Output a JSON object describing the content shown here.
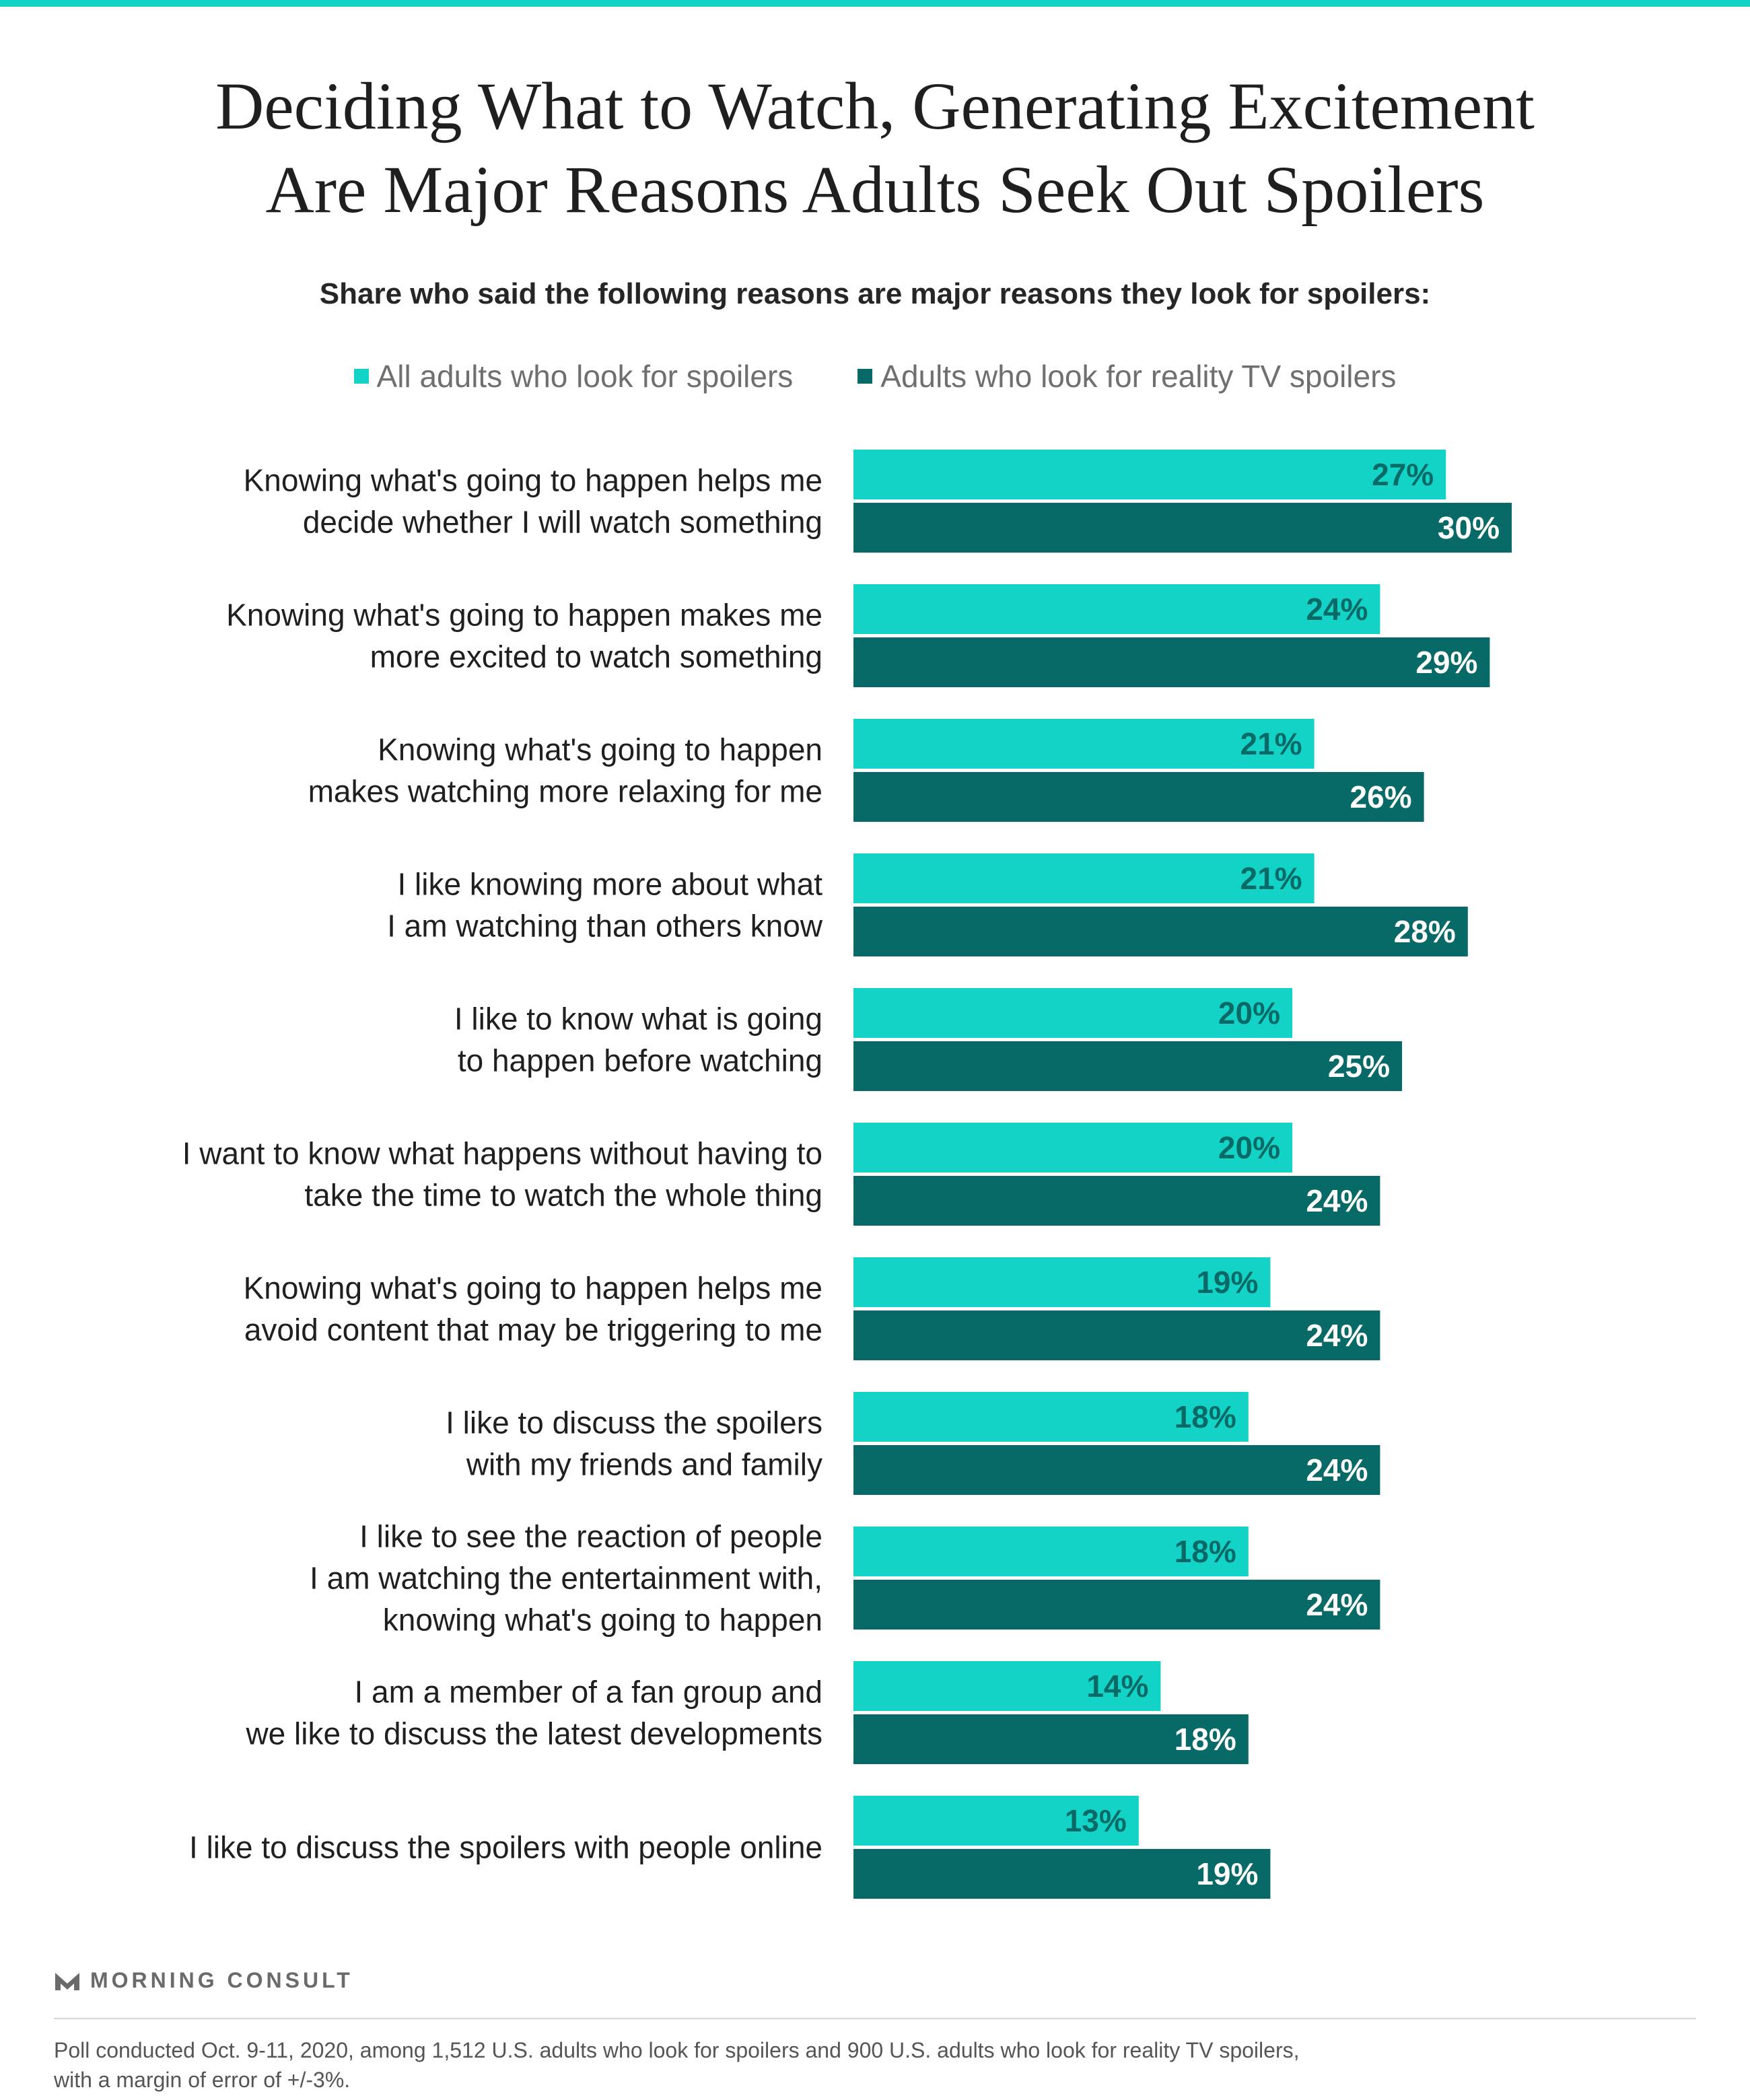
{
  "colors": {
    "accent": "#12d3c5",
    "series_all": "#12d3c5",
    "series_reality": "#076a67",
    "label_on_light": "#076a67",
    "label_on_dark": "#ffffff"
  },
  "title_lines": [
    "Deciding What to Watch, Generating Excitement",
    "Are Major Reasons Adults Seek Out Spoilers"
  ],
  "subtitle": "Share who said the following reasons are major reasons they look for spoilers:",
  "logo": {
    "text": "MORNING CONSULT",
    "icon": "morning-consult-m-icon"
  },
  "footnote_lines": [
    "Poll conducted Oct. 9-11, 2020, among 1,512 U.S. adults who look for spoilers and 900 U.S. adults who look for reality TV spoilers,",
    "with a margin of error of +/-3%."
  ],
  "chart_data": {
    "type": "bar",
    "orientation": "horizontal",
    "legend_position": "top",
    "grid": false,
    "xlim": [
      0,
      30
    ],
    "value_suffix": "%",
    "categories": [
      [
        "Knowing what's going to happen helps me",
        "decide whether I will watch something"
      ],
      [
        "Knowing what's going to happen makes me",
        "more excited to watch something"
      ],
      [
        "Knowing what's going to happen",
        "makes watching more relaxing for me"
      ],
      [
        "I like knowing more about what",
        "I am watching than others know"
      ],
      [
        "I like to know what is going",
        "to happen before watching"
      ],
      [
        "I want to know what happens without having to",
        "take the time to watch the whole thing"
      ],
      [
        "Knowing what's going to happen helps me",
        "avoid content that may be triggering to me"
      ],
      [
        "I like to discuss the spoilers",
        "with my friends and family"
      ],
      [
        "I like to see the reaction of people",
        "I am watching the entertainment with,",
        "knowing what's going to happen"
      ],
      [
        "I am a member of a fan group and",
        "we like to discuss the latest developments"
      ],
      [
        "I like to discuss the spoilers with people online"
      ]
    ],
    "series": [
      {
        "name": "All adults who look for spoilers",
        "color": "#12d3c5",
        "values": [
          27,
          24,
          21,
          21,
          20,
          20,
          19,
          18,
          18,
          14,
          13
        ]
      },
      {
        "name": "Adults who look for reality TV spoilers",
        "color": "#076a67",
        "values": [
          30,
          29,
          26,
          28,
          25,
          24,
          24,
          24,
          24,
          18,
          19
        ]
      }
    ]
  }
}
